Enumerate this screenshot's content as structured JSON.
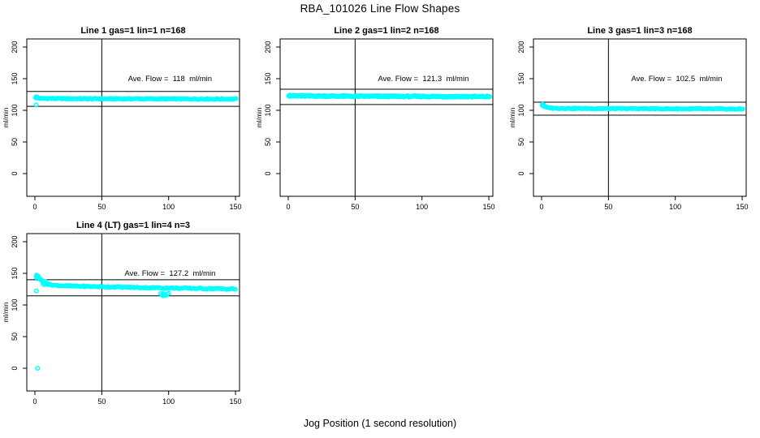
{
  "page": {
    "title": "RBA_101026  Line Flow Shapes",
    "xlabel": "Jog Position (1 second resolution)"
  },
  "colors": {
    "points": "#00FFFF",
    "lines": "#000000",
    "background": "#FFFFFF"
  },
  "chart_data": [
    {
      "type": "scatter",
      "title": "Line 1 gas=1 lin=1 n=168",
      "annotation": "Ave. Flow =  118  ml/min",
      "ave_flow": 118,
      "n": 168,
      "ylabel": "ml/min",
      "xticks": [
        0,
        50,
        100,
        150
      ],
      "yticks": [
        0,
        50,
        100,
        150,
        200
      ],
      "xlim": [
        -6,
        153
      ],
      "ylim": [
        -37,
        212
      ],
      "vline_x": 50,
      "hlines": [
        106.2,
        129.8
      ],
      "band": {
        "x_start": 0.5,
        "x_end": 150.5,
        "count": 168,
        "jitter": 1.6,
        "r": 2.2,
        "profile": [
          [
            0.5,
            120.5
          ],
          [
            1.5,
            119.5
          ],
          [
            4,
            118.8
          ],
          [
            30,
            118.3
          ],
          [
            150.5,
            117.8
          ]
        ]
      },
      "outliers": [
        [
          1,
          108.5
        ],
        [
          0.7,
          121
        ],
        [
          1.3,
          121.5
        ],
        [
          2,
          120.5
        ],
        [
          1,
          119.5
        ]
      ]
    },
    {
      "type": "scatter",
      "title": "Line 2 gas=1 lin=2 n=168",
      "annotation": "Ave. Flow =  121.3  ml/min",
      "ave_flow": 121.3,
      "n": 168,
      "ylabel": "ml/min",
      "xticks": [
        0,
        50,
        100,
        150
      ],
      "yticks": [
        0,
        50,
        100,
        150,
        200
      ],
      "xlim": [
        -6,
        153
      ],
      "ylim": [
        -37,
        212
      ],
      "vline_x": 50,
      "hlines": [
        109.2,
        133.4
      ],
      "band": {
        "x_start": 0.5,
        "x_end": 150.5,
        "count": 168,
        "jitter": 1.7,
        "r": 2.5,
        "profile": [
          [
            0.5,
            123.5
          ],
          [
            2,
            122.8
          ],
          [
            50,
            122.2
          ],
          [
            150.5,
            121.6
          ]
        ]
      },
      "outliers": [
        [
          0.6,
          123.5
        ],
        [
          1.2,
          124
        ]
      ]
    },
    {
      "type": "scatter",
      "title": "Line 3 gas=1 lin=3 n=168",
      "annotation": "Ave. Flow =  102.5  ml/min",
      "ave_flow": 102.5,
      "n": 168,
      "ylabel": "ml/min",
      "xticks": [
        0,
        50,
        100,
        150
      ],
      "yticks": [
        0,
        50,
        100,
        150,
        200
      ],
      "xlim": [
        -6,
        153
      ],
      "ylim": [
        -37,
        212
      ],
      "vline_x": 50,
      "hlines": [
        92.3,
        112.8
      ],
      "band": {
        "x_start": 0.5,
        "x_end": 150.5,
        "count": 168,
        "jitter": 1.5,
        "r": 2.2,
        "profile": [
          [
            0.5,
            108
          ],
          [
            2,
            106
          ],
          [
            5,
            104
          ],
          [
            10,
            103.2
          ],
          [
            40,
            102.8
          ],
          [
            150.5,
            102
          ]
        ]
      },
      "outliers": [
        [
          0.8,
          109.5
        ],
        [
          1.6,
          108.8
        ]
      ]
    },
    {
      "type": "scatter",
      "title": "Line 4 (LT) gas=1 lin=4 n=3",
      "annotation": "Ave. Flow =  127.2  ml/min",
      "ave_flow": 127.2,
      "n": 3,
      "ylabel": "ml/min",
      "xticks": [
        0,
        50,
        100,
        150
      ],
      "yticks": [
        0,
        50,
        100,
        150,
        200
      ],
      "xlim": [
        -6,
        153
      ],
      "ylim": [
        -37,
        212
      ],
      "vline_x": 50,
      "hlines": [
        114.5,
        139.9
      ],
      "band": {
        "x_start": 5,
        "x_end": 150,
        "count": 150,
        "jitter": 1.9,
        "r": 2.2,
        "profile": [
          [
            5,
            139
          ],
          [
            7,
            136
          ],
          [
            10,
            132.5
          ],
          [
            15,
            131
          ],
          [
            25,
            130
          ],
          [
            50,
            128.8
          ],
          [
            80,
            127.5
          ],
          [
            110,
            126.5
          ],
          [
            150,
            125.2
          ]
        ]
      },
      "outliers": [
        [
          1,
          144
        ],
        [
          1.7,
          146.5
        ],
        [
          2.4,
          145.5
        ],
        [
          3,
          143
        ],
        [
          3.8,
          141
        ],
        [
          4.5,
          140
        ],
        [
          2,
          141.5
        ],
        [
          1.2,
          147
        ],
        [
          6,
          134
        ],
        [
          7,
          132
        ],
        [
          8,
          137
        ],
        [
          9,
          134
        ],
        [
          11,
          133
        ],
        [
          94,
          118
        ],
        [
          95,
          116
        ],
        [
          96,
          114.5
        ],
        [
          96,
          118
        ],
        [
          97,
          116.5
        ],
        [
          98,
          115
        ],
        [
          99,
          117
        ],
        [
          100,
          118.5
        ],
        [
          2,
          0
        ],
        [
          1.1,
          122
        ]
      ]
    }
  ]
}
